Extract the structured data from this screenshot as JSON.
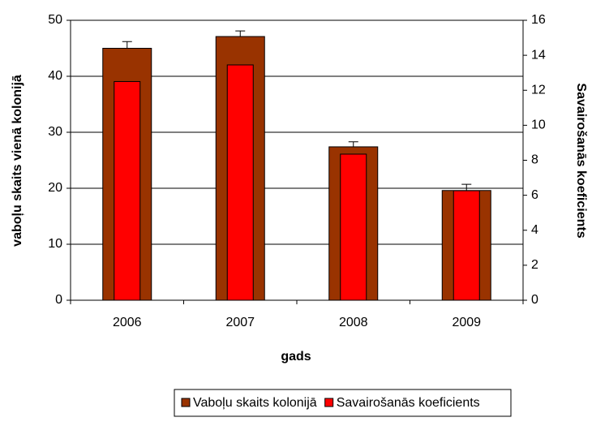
{
  "chart_data": {
    "type": "bar",
    "x_label": "gads",
    "y_label": "vaboļu skaits vienā kolonijā",
    "y2_label": "Savairošanās koeficients",
    "categories": [
      "2006",
      "2007",
      "2008",
      "2009"
    ],
    "series": [
      {
        "name": "Vaboļu skaits kolonijā",
        "color": "#993300",
        "values": [
          45,
          47.1,
          27.4,
          19.6
        ],
        "errors": [
          1.2,
          1.0,
          0.9,
          1.1
        ]
      },
      {
        "name": "Savairošanās koeficients",
        "color": "#ff0000",
        "axis": "y2",
        "values": [
          12.5,
          13.45,
          8.35,
          6.26
        ]
      }
    ],
    "ylim": [
      0,
      50
    ],
    "yticks": [
      0,
      10,
      20,
      30,
      40,
      50
    ],
    "y2lim": [
      0,
      16
    ],
    "y2ticks": [
      0,
      2,
      4,
      6,
      8,
      10,
      12,
      14,
      16
    ],
    "grid": true,
    "legend": "bottom"
  }
}
